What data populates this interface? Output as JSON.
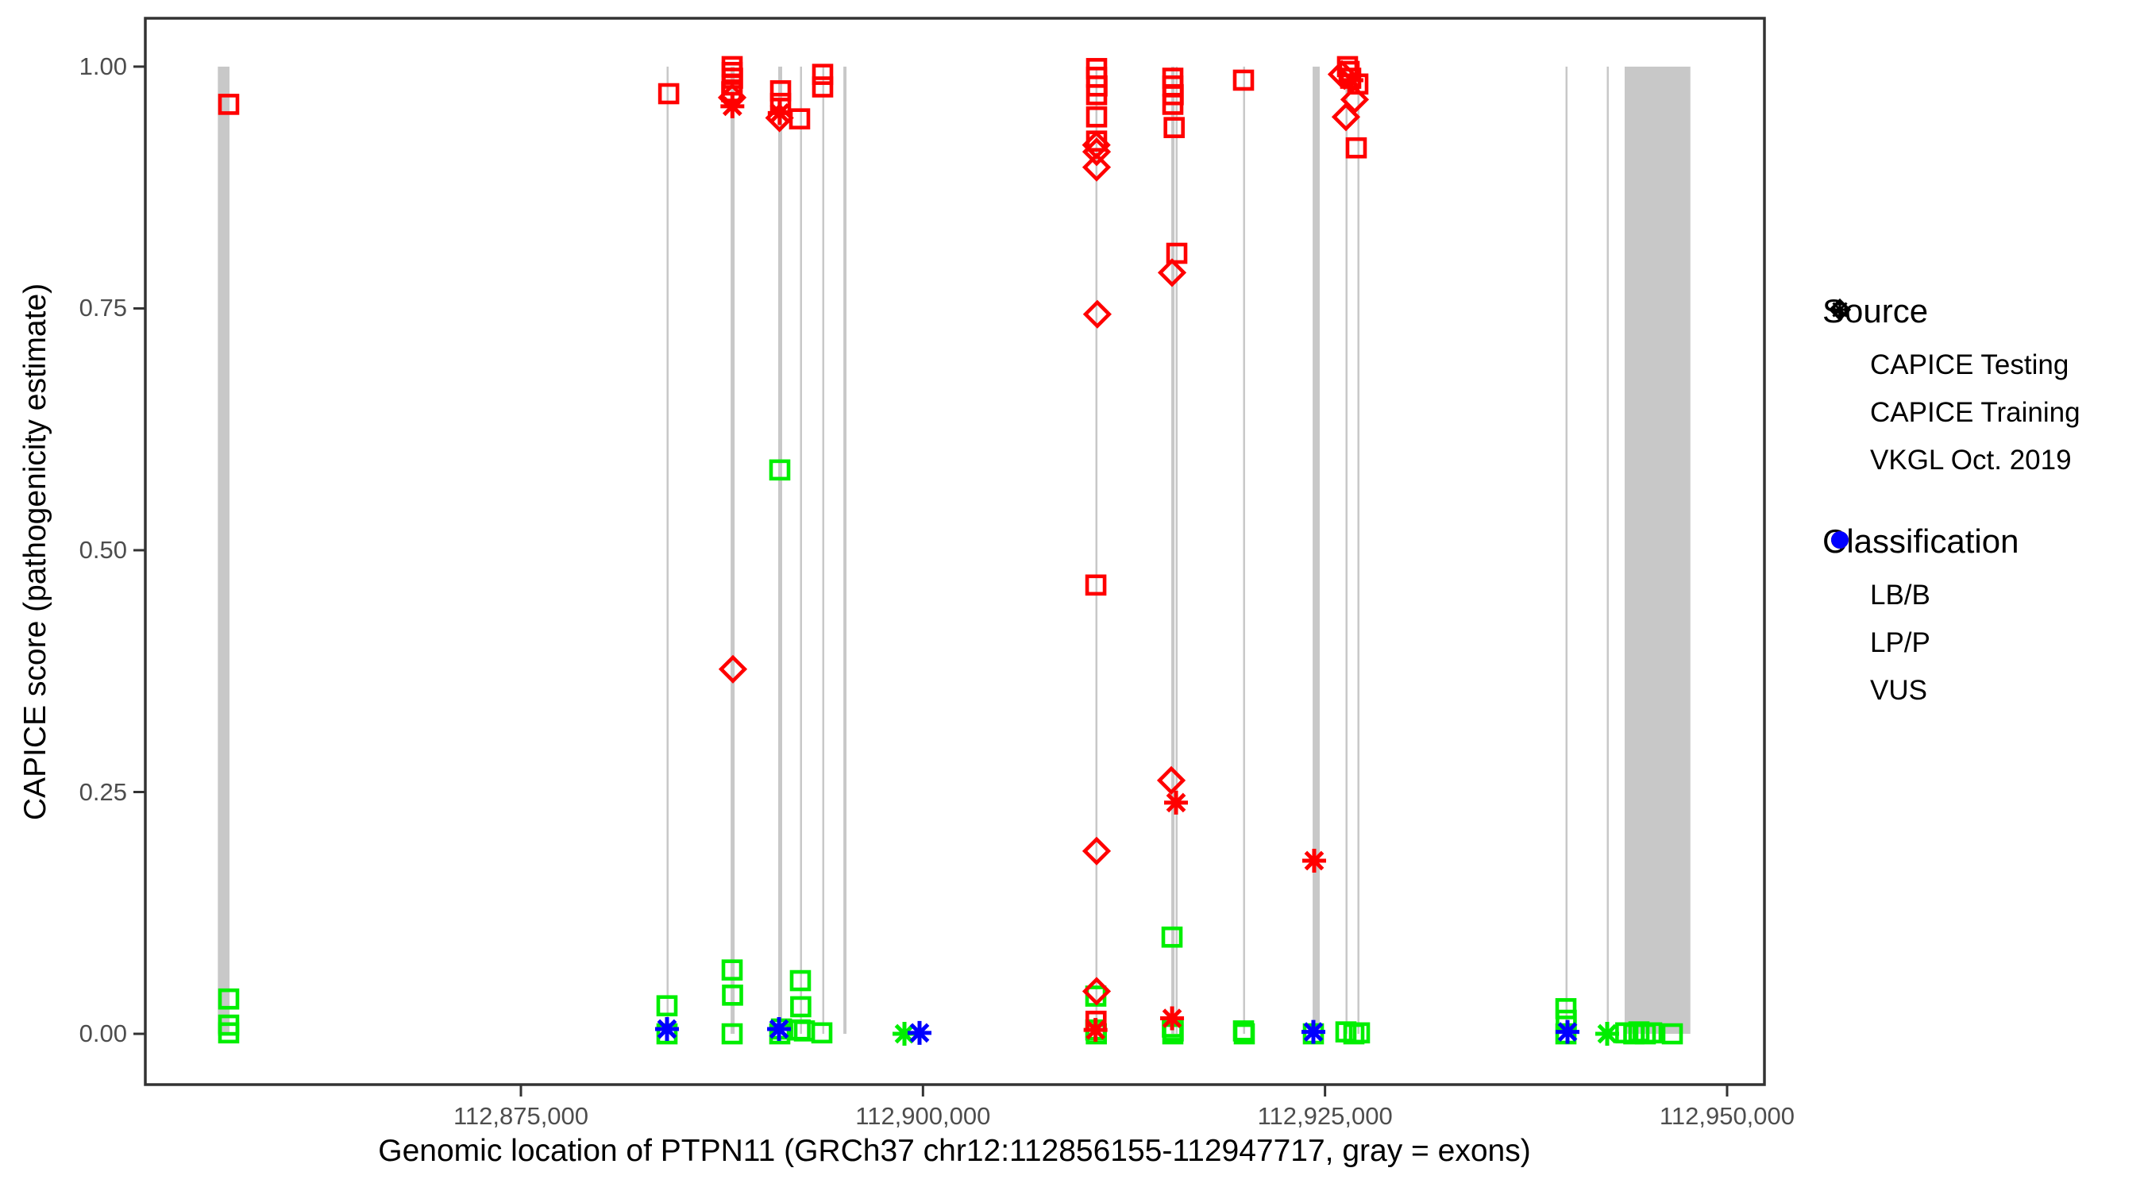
{
  "legend": {
    "source": {
      "title": "Source",
      "items": [
        {
          "label": "CAPICE Testing",
          "marker": "diamond"
        },
        {
          "label": "CAPICE Training",
          "marker": "square"
        },
        {
          "label": "VKGL Oct. 2019",
          "marker": "asterisk"
        }
      ]
    },
    "classification": {
      "title": "Classification",
      "items": [
        {
          "label": "LB/B",
          "color": "#00EE00"
        },
        {
          "label": "LP/P",
          "color": "#FF0000"
        },
        {
          "label": "VUS",
          "color": "#0000FF"
        }
      ]
    }
  },
  "chart_data": {
    "type": "scatter",
    "xlabel": "Genomic location of PTPN11 (GRCh37 chr12:112856155-112947717, gray = exons)",
    "ylabel": "CAPICE score (pathogenicity estimate)",
    "x_domain": [
      112851646,
      112952322
    ],
    "y_domain": [
      -0.0525,
      1.05
    ],
    "x_ticks": [
      {
        "value": 112875000,
        "label": "112,875,000"
      },
      {
        "value": 112900000,
        "label": "112,900,000"
      },
      {
        "value": 112925000,
        "label": "112,925,000"
      },
      {
        "value": 112950000,
        "label": "112,950,000"
      }
    ],
    "y_ticks": [
      {
        "value": 0.0,
        "label": "0.00"
      },
      {
        "value": 0.25,
        "label": "0.25"
      },
      {
        "value": 0.5,
        "label": "0.50"
      },
      {
        "value": 0.75,
        "label": "0.75"
      },
      {
        "value": 1.0,
        "label": "1.00"
      }
    ],
    "exon_color": "#C8C8C8",
    "class_colors": {
      "LB/B": "#00EE00",
      "LP/P": "#FF0000",
      "VUS": "#0000FF"
    },
    "source_markers": {
      "testing": "diamond",
      "training": "square",
      "vkgl": "asterisk"
    },
    "exons": [
      [
        112856155,
        112856880
      ],
      [
        112884060,
        112884170
      ],
      [
        112888040,
        112888290
      ],
      [
        112891000,
        112891245
      ],
      [
        112892355,
        112892460
      ],
      [
        112893740,
        112893845
      ],
      [
        112895050,
        112895245
      ],
      [
        112910725,
        112910830
      ],
      [
        112915440,
        112915640
      ],
      [
        112915710,
        112915815
      ],
      [
        112919905,
        112920010
      ],
      [
        112924230,
        112924670
      ],
      [
        112926275,
        112926380
      ],
      [
        112927015,
        112927120
      ],
      [
        112939955,
        112940060
      ],
      [
        112942520,
        112942625
      ],
      [
        112943630,
        112947717
      ]
    ],
    "points": [
      {
        "pos": 112856830,
        "score": 0.036,
        "source": "training",
        "class": "LB/B"
      },
      {
        "pos": 112856830,
        "score": 0.009,
        "source": "training",
        "class": "LB/B"
      },
      {
        "pos": 112856830,
        "score": 0.001,
        "source": "training",
        "class": "LB/B"
      },
      {
        "pos": 112884085,
        "score": 0.029,
        "source": "training",
        "class": "LB/B"
      },
      {
        "pos": 112884085,
        "score": 0.0,
        "source": "training",
        "class": "LB/B"
      },
      {
        "pos": 112888135,
        "score": 0.066,
        "source": "training",
        "class": "LB/B"
      },
      {
        "pos": 112888160,
        "score": 0.04,
        "source": "training",
        "class": "LB/B"
      },
      {
        "pos": 112888135,
        "score": 0.0,
        "source": "training",
        "class": "LB/B"
      },
      {
        "pos": 112891097,
        "score": 0.583,
        "source": "training",
        "class": "LB/B"
      },
      {
        "pos": 112891097,
        "score": 0.0,
        "source": "training",
        "class": "LB/B"
      },
      {
        "pos": 112891200,
        "score": 0.005,
        "source": "training",
        "class": "LB/B"
      },
      {
        "pos": 112892380,
        "score": 0.055,
        "source": "training",
        "class": "LB/B"
      },
      {
        "pos": 112892400,
        "score": 0.028,
        "source": "training",
        "class": "LB/B"
      },
      {
        "pos": 112892360,
        "score": 0.004,
        "source": "training",
        "class": "LB/B"
      },
      {
        "pos": 112892627,
        "score": 0.003,
        "source": "training",
        "class": "LB/B"
      },
      {
        "pos": 112893713,
        "score": 0.001,
        "source": "training",
        "class": "LB/B"
      },
      {
        "pos": 112898849,
        "score": 0.0,
        "source": "vkgl",
        "class": "LB/B"
      },
      {
        "pos": 112910748,
        "score": 0.039,
        "source": "training",
        "class": "LB/B"
      },
      {
        "pos": 112910748,
        "score": 0.004,
        "source": "training",
        "class": "LB/B"
      },
      {
        "pos": 112910780,
        "score": 0.0,
        "source": "training",
        "class": "LB/B"
      },
      {
        "pos": 112915488,
        "score": 0.1,
        "source": "training",
        "class": "LB/B"
      },
      {
        "pos": 112915510,
        "score": 0.007,
        "source": "training",
        "class": "LB/B"
      },
      {
        "pos": 112915560,
        "score": 0.003,
        "source": "training",
        "class": "LB/B"
      },
      {
        "pos": 112915537,
        "score": 0.0,
        "source": "training",
        "class": "LB/B"
      },
      {
        "pos": 112919931,
        "score": 0.003,
        "source": "training",
        "class": "LB/B"
      },
      {
        "pos": 112919980,
        "score": 0.0,
        "source": "training",
        "class": "LB/B"
      },
      {
        "pos": 112924276,
        "score": 0.0,
        "source": "training",
        "class": "LB/B"
      },
      {
        "pos": 112926300,
        "score": 0.002,
        "source": "training",
        "class": "LB/B"
      },
      {
        "pos": 112926794,
        "score": 0.0,
        "source": "training",
        "class": "LB/B"
      },
      {
        "pos": 112927140,
        "score": 0.001,
        "source": "training",
        "class": "LB/B"
      },
      {
        "pos": 112939978,
        "score": 0.026,
        "source": "training",
        "class": "LB/B"
      },
      {
        "pos": 112939998,
        "score": 0.014,
        "source": "training",
        "class": "LB/B"
      },
      {
        "pos": 112939978,
        "score": 0.0,
        "source": "training",
        "class": "LB/B"
      },
      {
        "pos": 112942545,
        "score": 0.0,
        "source": "vkgl",
        "class": "LB/B"
      },
      {
        "pos": 112943700,
        "score": 0.001,
        "source": "training",
        "class": "LB/B"
      },
      {
        "pos": 112944200,
        "score": 0.0,
        "source": "training",
        "class": "LB/B"
      },
      {
        "pos": 112944520,
        "score": 0.002,
        "source": "training",
        "class": "LB/B"
      },
      {
        "pos": 112944915,
        "score": 0.0,
        "source": "training",
        "class": "LB/B"
      },
      {
        "pos": 112945310,
        "score": 0.001,
        "source": "training",
        "class": "LB/B"
      },
      {
        "pos": 112946594,
        "score": 0.0,
        "source": "training",
        "class": "LB/B"
      },
      {
        "pos": 112884085,
        "score": 0.005,
        "source": "vkgl",
        "class": "VUS"
      },
      {
        "pos": 112891050,
        "score": 0.005,
        "source": "vkgl",
        "class": "VUS"
      },
      {
        "pos": 112899787,
        "score": 0.001,
        "source": "vkgl",
        "class": "VUS"
      },
      {
        "pos": 112924276,
        "score": 0.002,
        "source": "vkgl",
        "class": "VUS"
      },
      {
        "pos": 112940077,
        "score": 0.002,
        "source": "vkgl",
        "class": "VUS"
      },
      {
        "pos": 112856830,
        "score": 0.961,
        "source": "training",
        "class": "LP/P"
      },
      {
        "pos": 112884190,
        "score": 0.972,
        "source": "training",
        "class": "LP/P"
      },
      {
        "pos": 112888135,
        "score": 1.0,
        "source": "training",
        "class": "LP/P"
      },
      {
        "pos": 112888135,
        "score": 0.994,
        "source": "training",
        "class": "LP/P"
      },
      {
        "pos": 112888160,
        "score": 0.988,
        "source": "training",
        "class": "LP/P"
      },
      {
        "pos": 112888135,
        "score": 0.981,
        "source": "training",
        "class": "LP/P"
      },
      {
        "pos": 112888110,
        "score": 0.974,
        "source": "training",
        "class": "LP/P"
      },
      {
        "pos": 112888135,
        "score": 0.968,
        "source": "testing",
        "class": "LP/P"
      },
      {
        "pos": 112888150,
        "score": 0.959,
        "source": "vkgl",
        "class": "LP/P"
      },
      {
        "pos": 112888183,
        "score": 0.377,
        "source": "testing",
        "class": "LP/P"
      },
      {
        "pos": 112891147,
        "score": 0.975,
        "source": "training",
        "class": "LP/P"
      },
      {
        "pos": 112891147,
        "score": 0.962,
        "source": "training",
        "class": "LP/P"
      },
      {
        "pos": 112891090,
        "score": 0.952,
        "source": "vkgl",
        "class": "LP/P"
      },
      {
        "pos": 112891080,
        "score": 0.947,
        "source": "testing",
        "class": "LP/P"
      },
      {
        "pos": 112892330,
        "score": 0.946,
        "source": "training",
        "class": "LP/P"
      },
      {
        "pos": 112893763,
        "score": 0.992,
        "source": "training",
        "class": "LP/P"
      },
      {
        "pos": 112893763,
        "score": 0.979,
        "source": "training",
        "class": "LP/P"
      },
      {
        "pos": 112910797,
        "score": 0.998,
        "source": "training",
        "class": "LP/P"
      },
      {
        "pos": 112910797,
        "score": 0.989,
        "source": "training",
        "class": "LP/P"
      },
      {
        "pos": 112910820,
        "score": 0.98,
        "source": "training",
        "class": "LP/P"
      },
      {
        "pos": 112910797,
        "score": 0.971,
        "source": "training",
        "class": "LP/P"
      },
      {
        "pos": 112910797,
        "score": 0.948,
        "source": "training",
        "class": "LP/P"
      },
      {
        "pos": 112910797,
        "score": 0.923,
        "source": "training",
        "class": "LP/P"
      },
      {
        "pos": 112910780,
        "score": 0.919,
        "source": "testing",
        "class": "LP/P"
      },
      {
        "pos": 112910797,
        "score": 0.912,
        "source": "testing",
        "class": "LP/P"
      },
      {
        "pos": 112910797,
        "score": 0.896,
        "source": "testing",
        "class": "LP/P"
      },
      {
        "pos": 112910840,
        "score": 0.744,
        "source": "testing",
        "class": "LP/P"
      },
      {
        "pos": 112910750,
        "score": 0.464,
        "source": "training",
        "class": "LP/P"
      },
      {
        "pos": 112910797,
        "score": 0.189,
        "source": "testing",
        "class": "LP/P"
      },
      {
        "pos": 112910797,
        "score": 0.044,
        "source": "testing",
        "class": "LP/P"
      },
      {
        "pos": 112910760,
        "score": 0.013,
        "source": "training",
        "class": "LP/P"
      },
      {
        "pos": 112910730,
        "score": 0.004,
        "source": "vkgl",
        "class": "LP/P"
      },
      {
        "pos": 112915537,
        "score": 0.988,
        "source": "training",
        "class": "LP/P"
      },
      {
        "pos": 112915537,
        "score": 0.98,
        "source": "training",
        "class": "LP/P"
      },
      {
        "pos": 112915560,
        "score": 0.971,
        "source": "training",
        "class": "LP/P"
      },
      {
        "pos": 112915537,
        "score": 0.961,
        "source": "training",
        "class": "LP/P"
      },
      {
        "pos": 112915620,
        "score": 0.937,
        "source": "training",
        "class": "LP/P"
      },
      {
        "pos": 112915784,
        "score": 0.807,
        "source": "training",
        "class": "LP/P"
      },
      {
        "pos": 112915488,
        "score": 0.787,
        "source": "testing",
        "class": "LP/P"
      },
      {
        "pos": 112915440,
        "score": 0.262,
        "source": "testing",
        "class": "LP/P"
      },
      {
        "pos": 112915735,
        "score": 0.239,
        "source": "vkgl",
        "class": "LP/P"
      },
      {
        "pos": 112915490,
        "score": 0.016,
        "source": "vkgl",
        "class": "LP/P"
      },
      {
        "pos": 112919931,
        "score": 0.986,
        "source": "training",
        "class": "LP/P"
      },
      {
        "pos": 112924325,
        "score": 0.179,
        "source": "vkgl",
        "class": "LP/P"
      },
      {
        "pos": 112926053,
        "score": 0.992,
        "source": "testing",
        "class": "LP/P"
      },
      {
        "pos": 112926399,
        "score": 1.0,
        "source": "training",
        "class": "LP/P"
      },
      {
        "pos": 112926497,
        "score": 0.995,
        "source": "training",
        "class": "LP/P"
      },
      {
        "pos": 112926596,
        "score": 0.988,
        "source": "training",
        "class": "LP/P"
      },
      {
        "pos": 112926646,
        "score": 0.986,
        "source": "vkgl",
        "class": "LP/P"
      },
      {
        "pos": 112927041,
        "score": 0.982,
        "source": "training",
        "class": "LP/P"
      },
      {
        "pos": 112926843,
        "score": 0.966,
        "source": "testing",
        "class": "LP/P"
      },
      {
        "pos": 112926300,
        "score": 0.948,
        "source": "testing",
        "class": "LP/P"
      },
      {
        "pos": 112926942,
        "score": 0.916,
        "source": "training",
        "class": "LP/P"
      }
    ]
  }
}
